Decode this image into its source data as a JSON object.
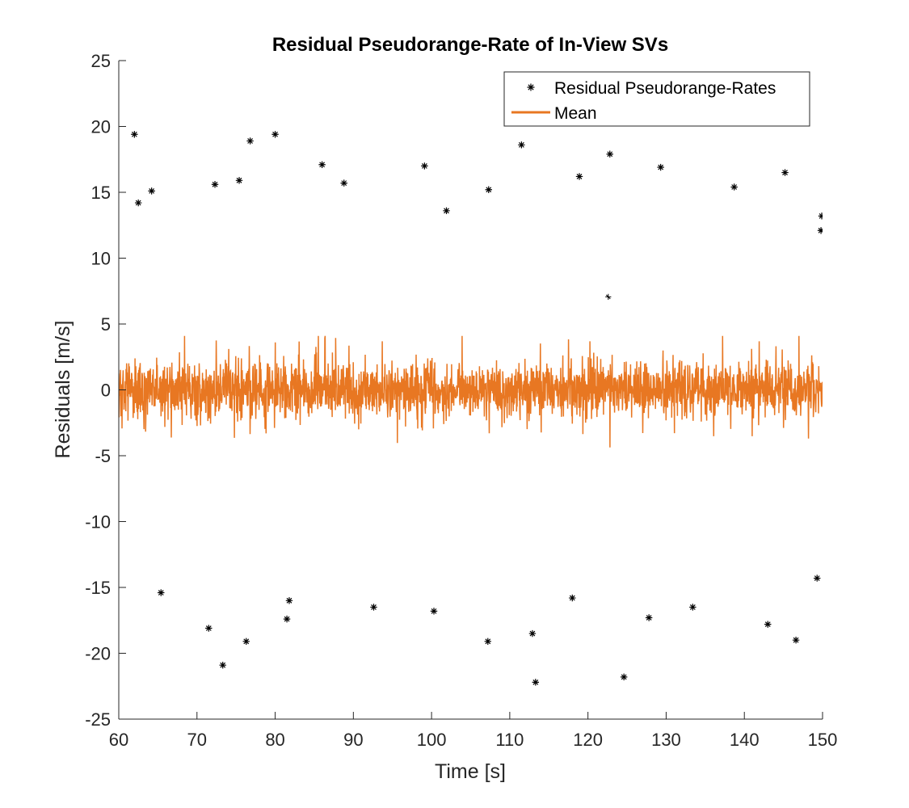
{
  "chart_data": {
    "type": "scatter",
    "title": "Residual Pseudorange-Rate of In-View SVs",
    "xlabel": "Time [s]",
    "ylabel": "Residuals [m/s]",
    "xlim": [
      60,
      150
    ],
    "ylim": [
      -25,
      25
    ],
    "xticks": [
      60,
      70,
      80,
      90,
      100,
      110,
      120,
      130,
      140,
      150
    ],
    "yticks": [
      25,
      20,
      15,
      10,
      5,
      0,
      -5,
      -10,
      -15,
      -20,
      -25
    ],
    "xtick_labels": [
      "60",
      "70",
      "80",
      "90",
      "100",
      "110",
      "120",
      "130",
      "140",
      "150"
    ],
    "ytick_labels": [
      "25",
      "20",
      "15",
      "10",
      "5",
      "0",
      "-5",
      "-10",
      "-15",
      "-20",
      "-25"
    ],
    "grid": false,
    "legend_position": "top-right",
    "series": [
      {
        "name": "Residual Pseudorange-Rates",
        "style": "markers-asterisk",
        "color": "#000000",
        "distribution": "dense band centred on 0, mostly within about -10 to 10, extremes near 19.5 and -22",
        "outliers": [
          {
            "x": 62.0,
            "y": 19.4
          },
          {
            "x": 76.8,
            "y": 18.9
          },
          {
            "x": 80.0,
            "y": 19.4
          },
          {
            "x": 86.0,
            "y": 17.1
          },
          {
            "x": 99.1,
            "y": 17.0
          },
          {
            "x": 111.5,
            "y": 18.6
          },
          {
            "x": 122.8,
            "y": 17.9
          },
          {
            "x": 129.3,
            "y": 16.9
          },
          {
            "x": 145.2,
            "y": 16.5
          },
          {
            "x": 75.4,
            "y": 15.9
          },
          {
            "x": 72.3,
            "y": 15.6
          },
          {
            "x": 88.8,
            "y": 15.7
          },
          {
            "x": 64.2,
            "y": 15.1
          },
          {
            "x": 138.7,
            "y": 15.4
          },
          {
            "x": 62.5,
            "y": 14.2
          },
          {
            "x": 107.3,
            "y": 15.2
          },
          {
            "x": 118.9,
            "y": 16.2
          },
          {
            "x": 101.9,
            "y": 13.6
          },
          {
            "x": 149.9,
            "y": 13.2
          },
          {
            "x": 149.8,
            "y": 12.1
          },
          {
            "x": 73.3,
            "y": -20.9
          },
          {
            "x": 76.3,
            "y": -19.1
          },
          {
            "x": 71.5,
            "y": -18.1
          },
          {
            "x": 81.5,
            "y": -17.4
          },
          {
            "x": 107.2,
            "y": -19.1
          },
          {
            "x": 113.3,
            "y": -22.2
          },
          {
            "x": 124.6,
            "y": -21.8
          },
          {
            "x": 146.6,
            "y": -19.0
          },
          {
            "x": 143.0,
            "y": -17.8
          },
          {
            "x": 100.3,
            "y": -16.8
          },
          {
            "x": 112.9,
            "y": -18.5
          },
          {
            "x": 65.4,
            "y": -15.4
          },
          {
            "x": 92.6,
            "y": -16.5
          },
          {
            "x": 127.8,
            "y": -17.3
          },
          {
            "x": 133.4,
            "y": -16.5
          },
          {
            "x": 149.3,
            "y": -14.3
          },
          {
            "x": 81.8,
            "y": -16.0
          },
          {
            "x": 118.0,
            "y": -15.8
          }
        ]
      },
      {
        "name": "Mean",
        "style": "line",
        "color": "#e87722",
        "distribution": "rapidly oscillating line centred on 0, mostly within about -2.5 to 2.5, spikes near 4 and -4.5"
      }
    ]
  }
}
